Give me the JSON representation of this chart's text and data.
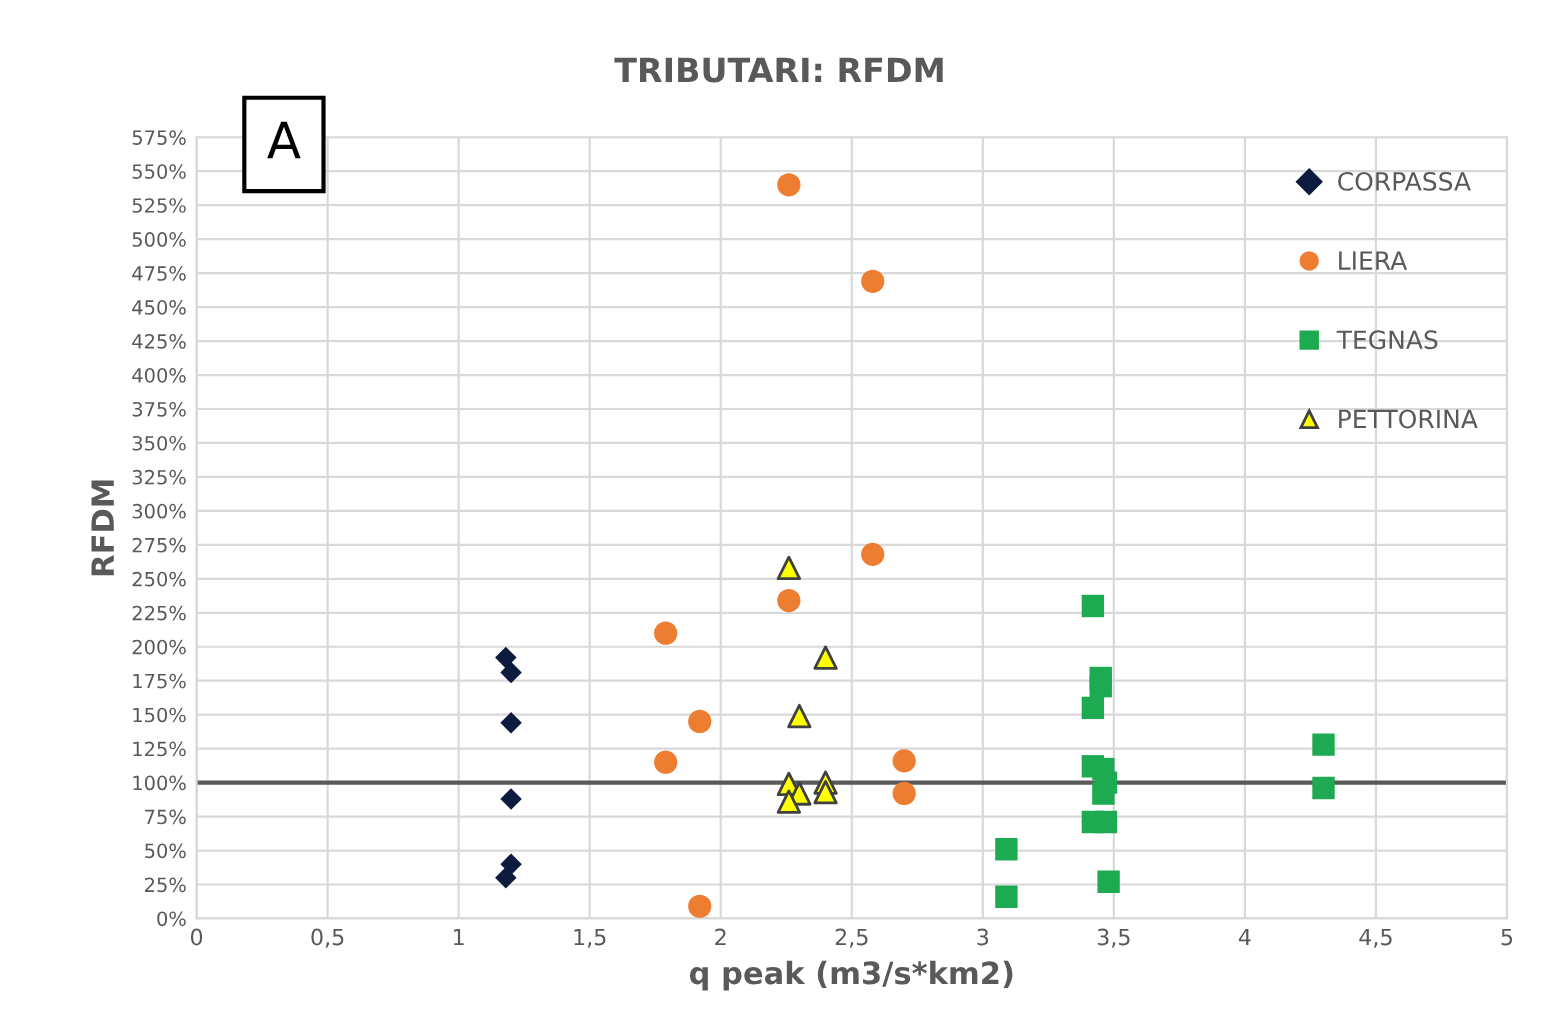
{
  "chart_data": {
    "type": "scatter",
    "title": "TRIBUTARI: RFDM",
    "xlabel": "q peak (m3/s*km2)",
    "ylabel": "RFDM",
    "annotations": [
      "A"
    ],
    "xlim": [
      0,
      5
    ],
    "xticks": [
      0,
      {
        "value": 0.5,
        "label": "0,5"
      },
      1,
      {
        "value": 1.5,
        "label": "1,5"
      },
      2,
      {
        "value": 2.5,
        "label": "2,5"
      },
      3,
      {
        "value": 3.5,
        "label": "3,5"
      },
      4,
      {
        "value": 4.5,
        "label": "4,5"
      },
      5
    ],
    "ylim": [
      0,
      575
    ],
    "yticks": [
      {
        "value": 0,
        "label": "0%"
      },
      {
        "value": 25,
        "label": "25%"
      },
      {
        "value": 50,
        "label": "50%"
      },
      {
        "value": 75,
        "label": "75%"
      },
      {
        "value": 100,
        "label": "100%"
      },
      {
        "value": 125,
        "label": "125%"
      },
      {
        "value": 150,
        "label": "150%"
      },
      {
        "value": 175,
        "label": "175%"
      },
      {
        "value": 200,
        "label": "200%"
      },
      {
        "value": 225,
        "label": "225%"
      },
      {
        "value": 250,
        "label": "250%"
      },
      {
        "value": 275,
        "label": "275%"
      },
      {
        "value": 300,
        "label": "300%"
      },
      {
        "value": 325,
        "label": "325%"
      },
      {
        "value": 350,
        "label": "350%"
      },
      {
        "value": 375,
        "label": "375%"
      },
      {
        "value": 400,
        "label": "400%"
      },
      {
        "value": 425,
        "label": "425%"
      },
      {
        "value": 450,
        "label": "450%"
      },
      {
        "value": 475,
        "label": "475%"
      },
      {
        "value": 500,
        "label": "500%"
      },
      {
        "value": 525,
        "label": "525%"
      },
      {
        "value": 550,
        "label": "550%"
      },
      {
        "value": 575,
        "label": "575%"
      }
    ],
    "grid": true,
    "legend": "top right",
    "ref_lines": [
      {
        "axis": "y",
        "value": 100,
        "color": "#595959"
      }
    ],
    "series": [
      {
        "name": "CORPASSA",
        "color": "#0d1b3e",
        "marker": "diamond",
        "x": [
          1.18,
          1.2,
          1.2,
          1.2,
          1.2,
          1.18
        ],
        "values": [
          192,
          181,
          144,
          88,
          40,
          30
        ]
      },
      {
        "name": "LIERA",
        "color": "#ed7d31",
        "marker": "circle",
        "x": [
          2.26,
          2.58,
          2.58,
          2.26,
          1.79,
          1.92,
          1.79,
          2.7,
          2.7,
          1.92
        ],
        "values": [
          540,
          469,
          268,
          234,
          210,
          145,
          115,
          116,
          92,
          9
        ]
      },
      {
        "name": "TEGNAS",
        "color": "#1eaa50",
        "marker": "square",
        "x": [
          3.42,
          3.45,
          3.45,
          3.42,
          3.42,
          3.46,
          3.47,
          3.46,
          3.42,
          3.47,
          3.48,
          3.09,
          3.09,
          4.3,
          4.3
        ],
        "values": [
          230,
          177,
          171,
          155,
          112,
          110,
          100,
          92,
          71,
          71,
          27,
          51,
          16,
          128,
          96
        ]
      },
      {
        "name": "PETTORINA",
        "color": "#ffff00",
        "marker": "triangle",
        "x": [
          2.26,
          2.4,
          2.3,
          2.26,
          2.4,
          2.3,
          2.26,
          2.4
        ],
        "values": [
          258,
          192,
          149,
          99,
          100,
          92,
          86,
          93
        ]
      }
    ]
  }
}
